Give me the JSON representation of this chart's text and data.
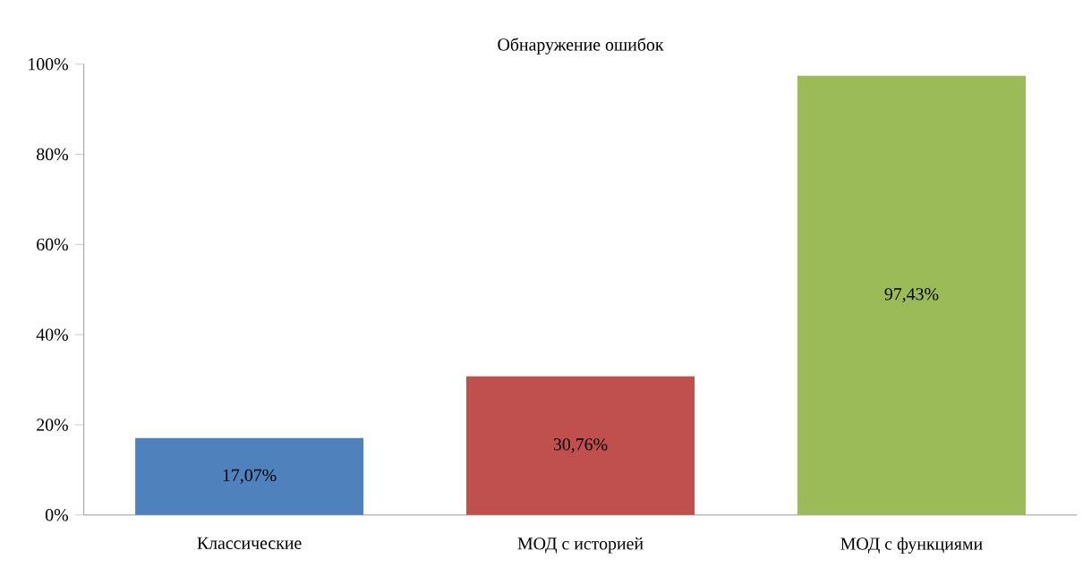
{
  "chart_data": {
    "type": "bar",
    "title": "Обнаружение ошибок",
    "categories": [
      "Классические",
      "МОД с историей",
      "МОД с функциями"
    ],
    "values": [
      17.07,
      30.76,
      97.43
    ],
    "colors": [
      "#4f81bd",
      "#c0504d",
      "#9bbb59"
    ],
    "value_labels": [
      "17,07%",
      "30,76%",
      "97,43%"
    ],
    "ylim": [
      0,
      100
    ],
    "yticks": [
      {
        "value": 0,
        "label": "0%"
      },
      {
        "value": 20,
        "label": "20%"
      },
      {
        "value": 40,
        "label": "40%"
      },
      {
        "value": 60,
        "label": "60%"
      },
      {
        "value": 80,
        "label": "80%"
      },
      {
        "value": 100,
        "label": "100%"
      }
    ]
  }
}
